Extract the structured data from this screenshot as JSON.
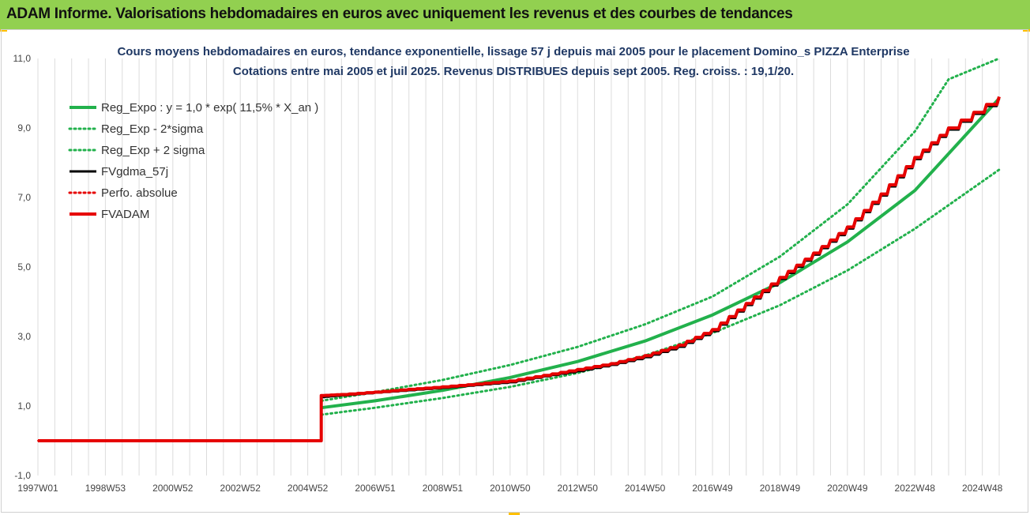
{
  "banner": {
    "title": "ADAM Informe. Valorisations hebdomadaires en euros avec uniquement les revenus et des courbes de tendances",
    "background": "#92d050"
  },
  "chart_data": {
    "type": "line",
    "title": "Cours moyens hebdomadaires en euros, tendance exponentielle, lissage 57 j depuis mai 2005 pour le placement Domino_s PIZZA Enterprise",
    "subtitle": "Cotations entre mai 2005 et juil 2025. Revenus DISTRIBUES depuis sept 2005. Reg. croiss. : 19,1/20.",
    "xlabel": "",
    "ylabel": "",
    "x_range": [
      1997.0,
      2025.5
    ],
    "ylim": [
      -1.0,
      11.0
    ],
    "y_ticks": [
      "-1,0",
      "1,0",
      "3,0",
      "5,0",
      "7,0",
      "9,0",
      "11,0"
    ],
    "x_ticks": [
      {
        "label": "1997W01",
        "x": 1997.0
      },
      {
        "label": "1998W53",
        "x": 1999.0
      },
      {
        "label": "2000W52",
        "x": 2001.0
      },
      {
        "label": "2002W52",
        "x": 2003.0
      },
      {
        "label": "2004W52",
        "x": 2005.0
      },
      {
        "label": "2006W51",
        "x": 2007.0
      },
      {
        "label": "2008W51",
        "x": 2009.0
      },
      {
        "label": "2010W50",
        "x": 2011.0
      },
      {
        "label": "2012W50",
        "x": 2013.0
      },
      {
        "label": "2014W50",
        "x": 2015.0
      },
      {
        "label": "2016W49",
        "x": 2017.0
      },
      {
        "label": "2018W49",
        "x": 2019.0
      },
      {
        "label": "2020W49",
        "x": 2021.0
      },
      {
        "label": "2022W48",
        "x": 2023.0
      },
      {
        "label": "2024W48",
        "x": 2025.0
      }
    ],
    "grid": "vertical",
    "legend_position": "top-left",
    "series": [
      {
        "name": "Reg_Expo : y = 1,0 * exp( 11,5% *  X_an )",
        "color": "#22b14c",
        "style": "solid",
        "x": [
          2005.4,
          2007.0,
          2009.0,
          2011.0,
          2013.0,
          2015.0,
          2017.0,
          2019.0,
          2021.0,
          2023.0,
          2025.5
        ],
        "values": [
          0.95,
          1.15,
          1.45,
          1.82,
          2.28,
          2.87,
          3.62,
          4.55,
          5.72,
          7.2,
          9.85
        ]
      },
      {
        "name": "Reg_Exp - 2*sigma",
        "color": "#22b14c",
        "style": "dotted",
        "x": [
          2005.4,
          2007.0,
          2009.0,
          2011.0,
          2013.0,
          2015.0,
          2017.0,
          2019.0,
          2021.0,
          2023.0,
          2025.5
        ],
        "values": [
          0.75,
          0.95,
          1.23,
          1.55,
          1.95,
          2.45,
          3.1,
          3.9,
          4.9,
          6.1,
          7.8
        ]
      },
      {
        "name": "Reg_Exp + 2 sigma",
        "color": "#22b14c",
        "style": "dotted",
        "x": [
          2005.4,
          2007.0,
          2009.0,
          2011.0,
          2013.0,
          2015.0,
          2017.0,
          2019.0,
          2021.0,
          2023.0,
          2024.0,
          2025.5
        ],
        "values": [
          1.15,
          1.4,
          1.75,
          2.18,
          2.7,
          3.35,
          4.15,
          5.3,
          6.8,
          8.9,
          10.4,
          11.0
        ]
      },
      {
        "name": "FVgdma_57j",
        "color": "#000000",
        "style": "solid",
        "x": [
          1997.0,
          2005.33,
          2005.4,
          2006.0,
          2007.0,
          2008.0,
          2009.0,
          2010.0,
          2011.0,
          2012.0,
          2013.0,
          2014.0,
          2015.0,
          2016.0,
          2017.0,
          2018.0,
          2019.0,
          2020.0,
          2021.0,
          2022.0,
          2023.0,
          2024.0,
          2025.5
        ],
        "values": [
          0.0,
          0.0,
          1.25,
          1.3,
          1.38,
          1.45,
          1.52,
          1.6,
          1.68,
          1.85,
          2.0,
          2.18,
          2.4,
          2.7,
          3.15,
          3.9,
          4.65,
          5.35,
          6.1,
          7.05,
          8.1,
          8.95,
          9.85
        ]
      },
      {
        "name": "Perfo. absolue",
        "color": "#e60000",
        "style": "dotted",
        "x": [
          1997.0,
          2005.33,
          2005.4,
          2006.0,
          2007.0,
          2008.0,
          2009.0,
          2010.0,
          2011.0,
          2012.0,
          2013.0,
          2014.0,
          2015.0,
          2016.0,
          2017.0,
          2018.0,
          2019.0,
          2020.0,
          2021.0,
          2022.0,
          2023.0,
          2024.0,
          2025.5
        ],
        "values": [
          0.0,
          0.0,
          1.28,
          1.32,
          1.4,
          1.47,
          1.54,
          1.62,
          1.7,
          1.87,
          2.02,
          2.2,
          2.42,
          2.72,
          3.18,
          3.93,
          4.68,
          5.38,
          6.13,
          7.08,
          8.13,
          8.98,
          9.88
        ]
      },
      {
        "name": "FVADAM",
        "color": "#e60000",
        "style": "solid",
        "x": [
          1997.0,
          2005.33,
          2005.4,
          2006.0,
          2007.0,
          2008.0,
          2009.0,
          2010.0,
          2011.0,
          2012.0,
          2013.0,
          2014.0,
          2015.0,
          2016.0,
          2017.0,
          2018.0,
          2019.0,
          2020.0,
          2021.0,
          2022.0,
          2023.0,
          2024.0,
          2025.5
        ],
        "values": [
          0.0,
          0.0,
          1.3,
          1.33,
          1.4,
          1.48,
          1.55,
          1.63,
          1.72,
          1.88,
          2.05,
          2.22,
          2.45,
          2.75,
          3.2,
          3.95,
          4.7,
          5.4,
          6.15,
          7.1,
          8.15,
          9.0,
          9.9
        ]
      }
    ]
  }
}
